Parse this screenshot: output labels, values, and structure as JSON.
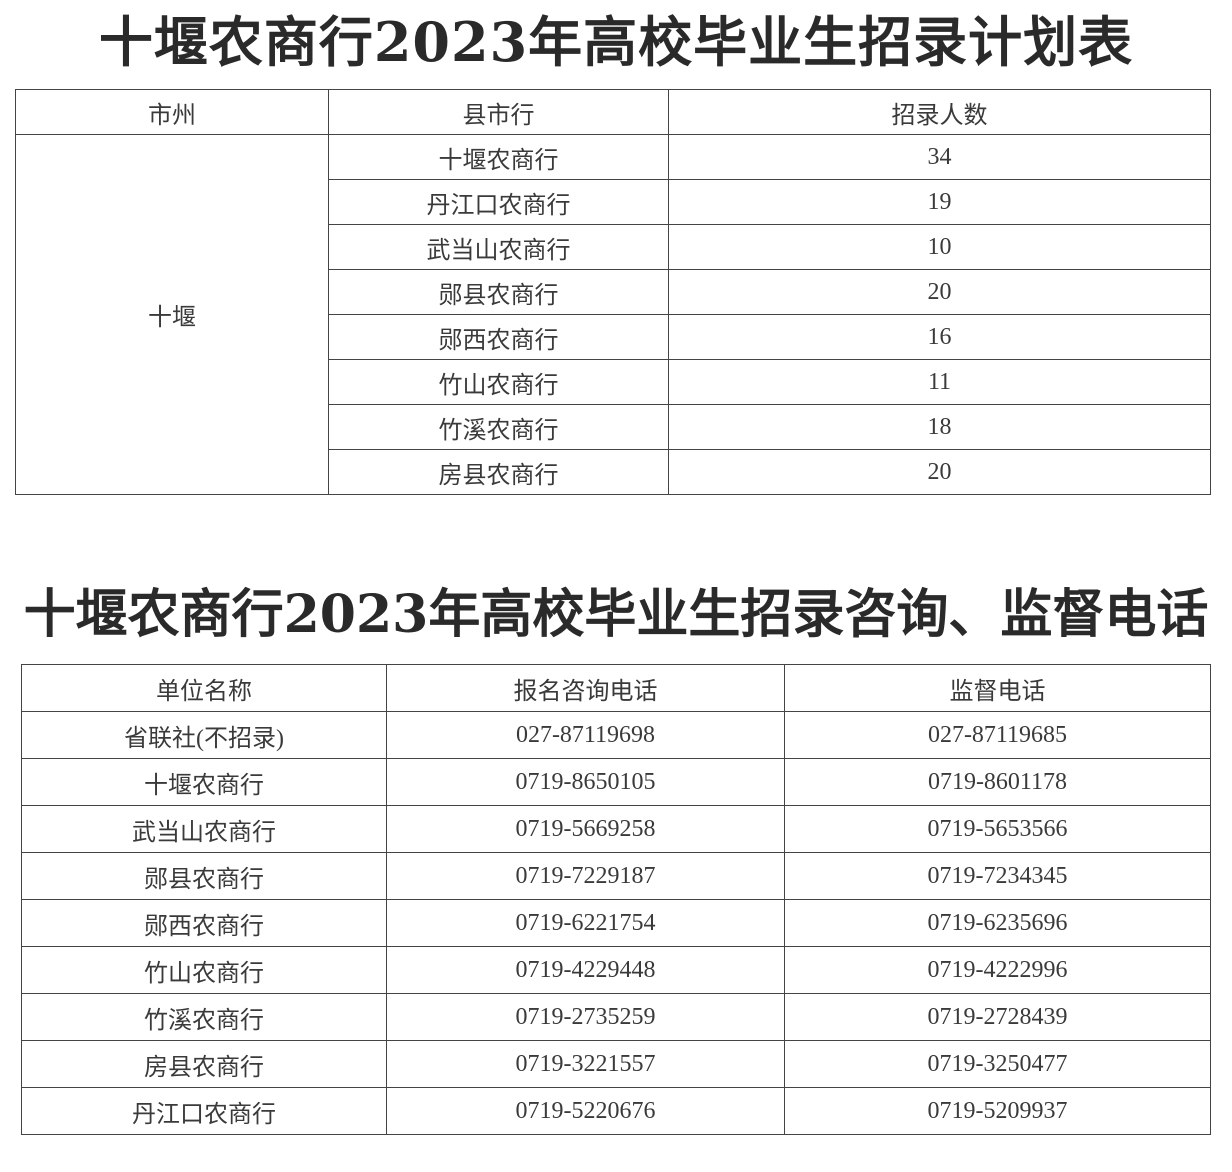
{
  "plan": {
    "title": "十堰农商行2023年高校毕业生招录计划表",
    "headers": [
      "市州",
      "县市行",
      "招录人数"
    ],
    "city": "十堰",
    "rows": [
      {
        "bank": "十堰农商行",
        "count": "34"
      },
      {
        "bank": "丹江口农商行",
        "count": "19"
      },
      {
        "bank": "武当山农商行",
        "count": "10"
      },
      {
        "bank": "郧县农商行",
        "count": "20"
      },
      {
        "bank": "郧西农商行",
        "count": "16"
      },
      {
        "bank": "竹山农商行",
        "count": "11"
      },
      {
        "bank": "竹溪农商行",
        "count": "18"
      },
      {
        "bank": "房县农商行",
        "count": "20"
      }
    ]
  },
  "contacts": {
    "title": "十堰农商行2023年高校毕业生招录咨询、监督电话",
    "headers": [
      "单位名称",
      "报名咨询电话",
      "监督电话"
    ],
    "rows": [
      {
        "unit": "省联社(不招录)",
        "inquiry": "027-87119698",
        "supervision": "027-87119685"
      },
      {
        "unit": "十堰农商行",
        "inquiry": "0719-8650105",
        "supervision": "0719-8601178"
      },
      {
        "unit": "武当山农商行",
        "inquiry": "0719-5669258",
        "supervision": "0719-5653566"
      },
      {
        "unit": "郧县农商行",
        "inquiry": "0719-7229187",
        "supervision": "0719-7234345"
      },
      {
        "unit": "郧西农商行",
        "inquiry": "0719-6221754",
        "supervision": "0719-6235696"
      },
      {
        "unit": "竹山农商行",
        "inquiry": "0719-4229448",
        "supervision": "0719-4222996"
      },
      {
        "unit": "竹溪农商行",
        "inquiry": "0719-2735259",
        "supervision": "0719-2728439"
      },
      {
        "unit": "房县农商行",
        "inquiry": "0719-3221557",
        "supervision": "0719-3250477"
      },
      {
        "unit": "丹江口农商行",
        "inquiry": "0719-5220676",
        "supervision": "0719-5209937"
      }
    ]
  }
}
